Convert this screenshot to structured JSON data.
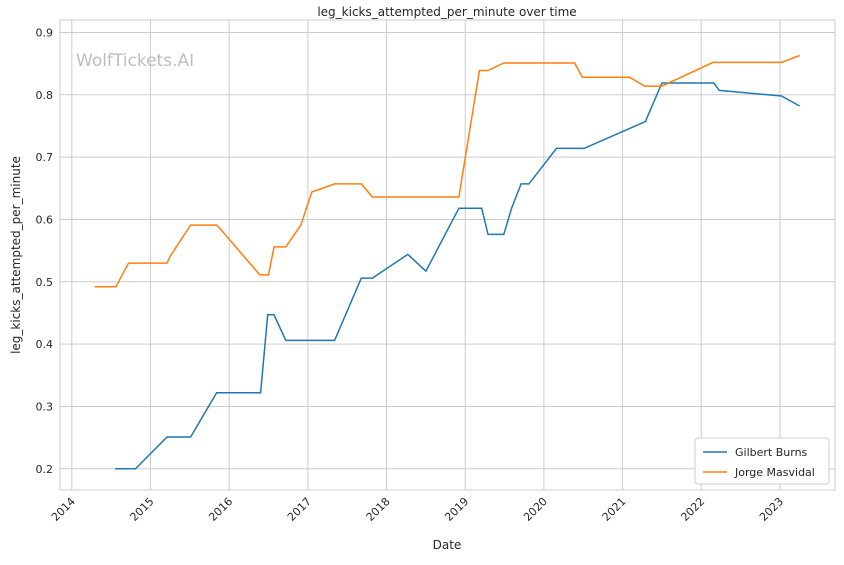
{
  "chart_data": {
    "type": "line",
    "title": "leg_kicks_attempted_per_minute over time",
    "xlabel": "Date",
    "ylabel": "leg_kicks_attempted_per_minute",
    "watermark": "WolfTickets.AI",
    "xlim": [
      2013.85,
      2023.7
    ],
    "ylim": [
      0.166,
      0.92
    ],
    "xticks": [
      2014,
      2015,
      2016,
      2017,
      2018,
      2019,
      2020,
      2021,
      2022,
      2023
    ],
    "yticks": [
      0.2,
      0.3,
      0.4,
      0.5,
      0.6,
      0.7,
      0.8,
      0.9
    ],
    "grid": true,
    "legend_position": "bottom-right",
    "series": [
      {
        "name": "Gilbert Burns",
        "color": "#1f77b4",
        "x": [
          2014.55,
          2014.81,
          2015.21,
          2015.51,
          2015.84,
          2016.4,
          2016.49,
          2016.57,
          2016.72,
          2017.34,
          2017.68,
          2017.82,
          2018.27,
          2018.5,
          2018.92,
          2019.21,
          2019.29,
          2019.49,
          2019.59,
          2019.71,
          2019.81,
          2020.16,
          2020.51,
          2021.29,
          2021.5,
          2022.16,
          2022.23,
          2023.02,
          2023.25
        ],
        "y": [
          0.2,
          0.2,
          0.251,
          0.251,
          0.322,
          0.322,
          0.447,
          0.447,
          0.406,
          0.406,
          0.506,
          0.506,
          0.544,
          0.517,
          0.618,
          0.618,
          0.576,
          0.576,
          0.618,
          0.657,
          0.657,
          0.714,
          0.714,
          0.757,
          0.819,
          0.819,
          0.807,
          0.798,
          0.782
        ]
      },
      {
        "name": "Jorge Masvidal",
        "color": "#ff7f0e",
        "x": [
          2014.29,
          2014.56,
          2014.72,
          2015.21,
          2015.25,
          2015.51,
          2015.84,
          2015.88,
          2016.39,
          2016.5,
          2016.57,
          2016.72,
          2016.91,
          2017.05,
          2017.34,
          2017.68,
          2017.82,
          2018.92,
          2019.18,
          2019.29,
          2019.49,
          2020.39,
          2020.49,
          2021.09,
          2021.28,
          2021.5,
          2022.15,
          2023.02,
          2023.25
        ],
        "y": [
          0.492,
          0.492,
          0.53,
          0.53,
          0.541,
          0.591,
          0.591,
          0.586,
          0.511,
          0.511,
          0.556,
          0.556,
          0.591,
          0.644,
          0.657,
          0.657,
          0.636,
          0.636,
          0.839,
          0.839,
          0.851,
          0.851,
          0.828,
          0.828,
          0.814,
          0.814,
          0.852,
          0.852,
          0.863
        ]
      }
    ]
  }
}
